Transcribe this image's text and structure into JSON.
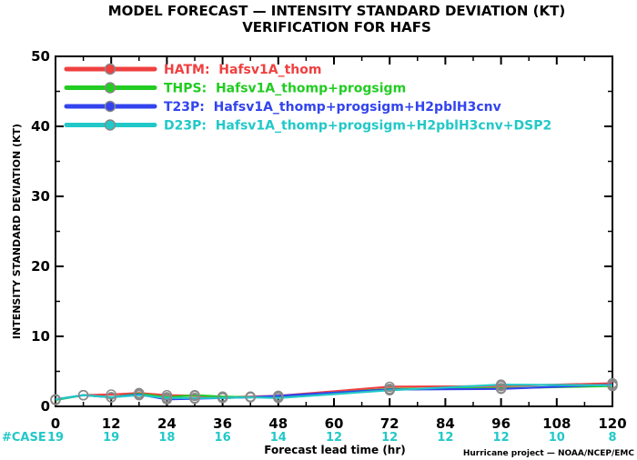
{
  "chart_data": {
    "type": "line",
    "title": "MODEL FORECAST — INTENSITY STANDARD DEVIATION (KT)",
    "subtitle": "VERIFICATION FOR HAFS",
    "xlabel": "Forecast lead time (hr)",
    "ylabel": "INTENSITY STANDARD DEVIATION (KT)",
    "xlim": [
      0,
      120
    ],
    "ylim": [
      0,
      50
    ],
    "x_ticks": [
      "0",
      "12",
      "24",
      "36",
      "48",
      "60",
      "72",
      "84",
      "96",
      "108",
      "120"
    ],
    "y_ticks": [
      "0",
      "10",
      "20",
      "30",
      "40",
      "50"
    ],
    "grid": false,
    "legend_position": "top-left",
    "series": [
      {
        "name": "HATM:  Hafsv1A_thom",
        "color": "#f04040",
        "x": [
          0,
          6,
          12,
          18,
          24,
          30,
          36,
          42,
          48,
          72,
          96,
          120
        ],
        "y": [
          1.0,
          1.6,
          1.7,
          1.9,
          1.6,
          1.5,
          1.3,
          1.4,
          1.5,
          2.8,
          2.9,
          3.3
        ]
      },
      {
        "name": "THPS:  Hafsv1A_thomp+progsigm",
        "color": "#22cc22",
        "x": [
          0,
          6,
          12,
          18,
          24,
          30,
          36,
          42,
          48,
          72,
          96,
          120
        ],
        "y": [
          0.9,
          1.6,
          1.3,
          1.8,
          1.3,
          1.6,
          1.4,
          1.3,
          1.4,
          2.5,
          2.6,
          2.9
        ]
      },
      {
        "name": "T23P:  Hafsv1A_thomp+progsigm+H2pblH3cnv",
        "color": "#3344ee",
        "x": [
          0,
          6,
          12,
          18,
          24,
          30,
          36,
          42,
          48,
          72,
          96,
          120
        ],
        "y": [
          1.0,
          1.6,
          1.3,
          1.7,
          1.0,
          1.1,
          1.2,
          1.3,
          1.5,
          2.4,
          2.5,
          3.1
        ]
      },
      {
        "name": "D23P:  Hafsv1A_thomp+progsigm+H2pblH3cnv+DSP2",
        "color": "#22c8c8",
        "x": [
          0,
          6,
          12,
          18,
          24,
          30,
          36,
          42,
          48,
          72,
          96,
          120
        ],
        "y": [
          1.0,
          1.6,
          1.3,
          1.6,
          1.2,
          1.2,
          1.2,
          1.3,
          1.2,
          2.3,
          3.1,
          3.0
        ]
      }
    ],
    "case_label": "#CASE",
    "case_color": "#22c8c8",
    "cases": [
      {
        "x": 0,
        "n": "19"
      },
      {
        "x": 12,
        "n": "19"
      },
      {
        "x": 24,
        "n": "18"
      },
      {
        "x": 36,
        "n": "16"
      },
      {
        "x": 48,
        "n": "14"
      },
      {
        "x": 60,
        "n": "12"
      },
      {
        "x": 72,
        "n": "12"
      },
      {
        "x": 84,
        "n": "12"
      },
      {
        "x": 96,
        "n": "12"
      },
      {
        "x": 108,
        "n": "10"
      },
      {
        "x": 120,
        "n": "8"
      }
    ]
  },
  "credit": "Hurricane project — NOAA/NCEP/EMC"
}
